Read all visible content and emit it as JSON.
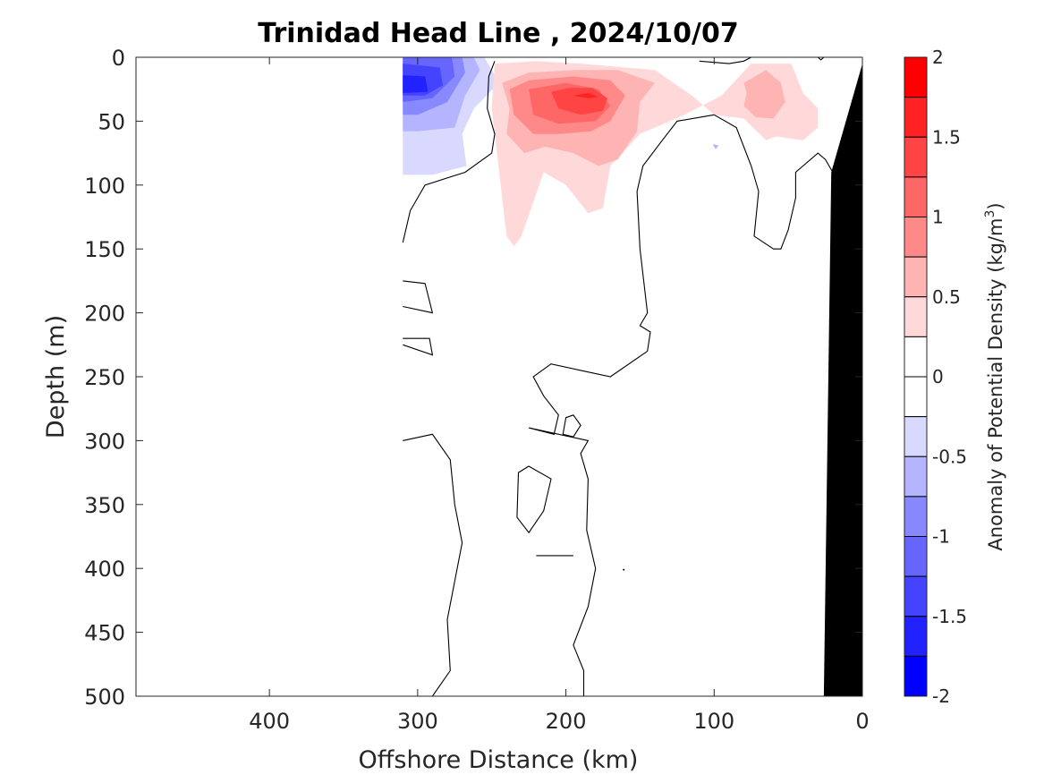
{
  "chart_data": {
    "type": "contour",
    "title": "Trinidad Head Line , 2024/10/07",
    "xlabel": "Offshore Distance (km)",
    "ylabel": "Depth (m)",
    "xlim": [
      490,
      0
    ],
    "ylim": [
      0,
      500
    ],
    "xticks": [
      400,
      300,
      200,
      100,
      0
    ],
    "yticks": [
      0,
      50,
      100,
      150,
      200,
      250,
      300,
      350,
      400,
      450,
      500
    ],
    "colorbar": {
      "label": "Anomaly of Potential Density (kg/m",
      "label_superscript": "3",
      "label_suffix": ")",
      "range": [
        -2,
        2
      ],
      "ticks": [
        2,
        1.5,
        1,
        0.5,
        0,
        -0.5,
        -1,
        -1.5,
        -2
      ],
      "tick_labels": [
        "2",
        "1.5",
        "1",
        "0.5",
        "0",
        "-0.5",
        "-1",
        "-1.5",
        "-2"
      ],
      "levels": [
        {
          "lo": 1.75,
          "hi": 2.0,
          "color": "#ff0000"
        },
        {
          "lo": 1.5,
          "hi": 1.75,
          "color": "#ff2222"
        },
        {
          "lo": 1.25,
          "hi": 1.5,
          "color": "#ff4444"
        },
        {
          "lo": 1.0,
          "hi": 1.25,
          "color": "#ff6666"
        },
        {
          "lo": 0.75,
          "hi": 1.0,
          "color": "#ff8888"
        },
        {
          "lo": 0.5,
          "hi": 0.75,
          "color": "#ffb4b4"
        },
        {
          "lo": 0.25,
          "hi": 0.5,
          "color": "#ffd9d9"
        },
        {
          "lo": 0.0,
          "hi": 0.25,
          "color": "#ffffff"
        },
        {
          "lo": -0.25,
          "hi": 0.0,
          "color": "#ffffff"
        },
        {
          "lo": -0.5,
          "hi": -0.25,
          "color": "#d9d9ff"
        },
        {
          "lo": -0.75,
          "hi": -0.5,
          "color": "#b4b4ff"
        },
        {
          "lo": -1.0,
          "hi": -0.75,
          "color": "#8888ff"
        },
        {
          "lo": -1.25,
          "hi": -1.0,
          "color": "#6666ff"
        },
        {
          "lo": -1.5,
          "hi": -1.25,
          "color": "#4444ff"
        },
        {
          "lo": -1.75,
          "hi": -1.5,
          "color": "#2222ff"
        },
        {
          "lo": -2.0,
          "hi": -1.75,
          "color": "#0000ff"
        }
      ]
    },
    "data_extent_km": 310,
    "bathymetry": [
      [
        26,
        500
      ],
      [
        21,
        90
      ],
      [
        0,
        5
      ],
      [
        0,
        500
      ]
    ],
    "regions": [
      {
        "name": "neg-0.5",
        "color": "#d9d9ff",
        "points": [
          [
            310,
            0
          ],
          [
            255,
            0
          ],
          [
            245,
            20
          ],
          [
            262,
            40
          ],
          [
            270,
            60
          ],
          [
            267,
            85
          ],
          [
            290,
            92
          ],
          [
            310,
            92
          ]
        ]
      },
      {
        "name": "neg-0.75",
        "color": "#b4b4ff",
        "points": [
          [
            310,
            0
          ],
          [
            262,
            0
          ],
          [
            258,
            10
          ],
          [
            268,
            30
          ],
          [
            275,
            55
          ],
          [
            300,
            58
          ],
          [
            310,
            58
          ]
        ]
      },
      {
        "name": "neg-1.0",
        "color": "#8888ff",
        "points": [
          [
            310,
            0
          ],
          [
            270,
            0
          ],
          [
            268,
            12
          ],
          [
            280,
            35
          ],
          [
            300,
            45
          ],
          [
            310,
            45
          ]
        ]
      },
      {
        "name": "neg-1.25",
        "color": "#6666ff",
        "points": [
          [
            310,
            0
          ],
          [
            277,
            0
          ],
          [
            275,
            15
          ],
          [
            290,
            32
          ],
          [
            310,
            35
          ]
        ]
      },
      {
        "name": "neg-1.5",
        "color": "#4444ff",
        "points": [
          [
            310,
            5
          ],
          [
            285,
            8
          ],
          [
            283,
            22
          ],
          [
            295,
            30
          ],
          [
            310,
            30
          ]
        ]
      },
      {
        "name": "neg-1.75",
        "color": "#2222ff",
        "points": [
          [
            310,
            14
          ],
          [
            295,
            15
          ],
          [
            293,
            27
          ],
          [
            310,
            28
          ]
        ]
      },
      {
        "name": "pos-0.25",
        "color": "#ffd9d9",
        "points": [
          [
            248,
            5
          ],
          [
            250,
            40
          ],
          [
            245,
            90
          ],
          [
            240,
            140
          ],
          [
            235,
            148
          ],
          [
            230,
            140
          ],
          [
            215,
            90
          ],
          [
            200,
            100
          ],
          [
            185,
            122
          ],
          [
            175,
            118
          ],
          [
            170,
            85
          ],
          [
            150,
            60
          ],
          [
            120,
            45
          ],
          [
            95,
            30
          ],
          [
            75,
            5
          ],
          [
            48,
            5
          ],
          [
            40,
            28
          ],
          [
            30,
            40
          ],
          [
            30,
            55
          ],
          [
            40,
            65
          ],
          [
            58,
            62
          ],
          [
            65,
            65
          ],
          [
            80,
            48
          ],
          [
            100,
            45
          ],
          [
            115,
            30
          ],
          [
            140,
            10
          ],
          [
            190,
            5
          ],
          [
            220,
            3
          ]
        ]
      },
      {
        "name": "pos-0.5",
        "color": "#ffb4b4",
        "points": [
          [
            243,
            20
          ],
          [
            238,
            40
          ],
          [
            240,
            60
          ],
          [
            228,
            75
          ],
          [
            214,
            70
          ],
          [
            195,
            75
          ],
          [
            178,
            85
          ],
          [
            165,
            80
          ],
          [
            152,
            58
          ],
          [
            150,
            35
          ],
          [
            140,
            20
          ],
          [
            165,
            10
          ],
          [
            195,
            10
          ],
          [
            225,
            12
          ]
        ]
      },
      {
        "name": "pos-0.5b",
        "color": "#ffb4b4",
        "points": [
          [
            80,
            20
          ],
          [
            65,
            10
          ],
          [
            55,
            20
          ],
          [
            52,
            35
          ],
          [
            60,
            48
          ],
          [
            72,
            47
          ],
          [
            80,
            38
          ],
          [
            78,
            28
          ]
        ]
      },
      {
        "name": "pos-0.75",
        "color": "#ff8888",
        "points": [
          [
            238,
            25
          ],
          [
            235,
            45
          ],
          [
            222,
            60
          ],
          [
            205,
            60
          ],
          [
            183,
            58
          ],
          [
            170,
            50
          ],
          [
            160,
            30
          ],
          [
            170,
            18
          ],
          [
            195,
            15
          ],
          [
            225,
            18
          ]
        ]
      },
      {
        "name": "pos-1.0",
        "color": "#ff6666",
        "points": [
          [
            225,
            25
          ],
          [
            222,
            45
          ],
          [
            205,
            52
          ],
          [
            180,
            50
          ],
          [
            170,
            38
          ],
          [
            178,
            25
          ],
          [
            200,
            20
          ]
        ]
      },
      {
        "name": "pos-1.25",
        "color": "#ff4444",
        "points": [
          [
            210,
            27
          ],
          [
            205,
            40
          ],
          [
            190,
            45
          ],
          [
            175,
            42
          ],
          [
            172,
            32
          ],
          [
            182,
            24
          ],
          [
            198,
            24
          ]
        ]
      },
      {
        "name": "pos-1.5",
        "color": "#ff2222",
        "points": [
          [
            195,
            30
          ],
          [
            185,
            32
          ],
          [
            178,
            31
          ],
          [
            185,
            28
          ]
        ]
      },
      {
        "name": "neg-speck",
        "color": "#b4b4ff",
        "points": [
          [
            101,
            68
          ],
          [
            99,
            72
          ],
          [
            97,
            69
          ]
        ]
      }
    ],
    "zero_contours": [
      {
        "closed": false,
        "points": [
          [
            248,
            3
          ],
          [
            252,
            15
          ],
          [
            253,
            40
          ],
          [
            248,
            60
          ],
          [
            250,
            75
          ],
          [
            268,
            90
          ],
          [
            295,
            100
          ],
          [
            305,
            120
          ],
          [
            310,
            145
          ]
        ]
      },
      {
        "closed": false,
        "points": [
          [
            110,
            3
          ],
          [
            90,
            5
          ],
          [
            80,
            3
          ],
          [
            75,
            0
          ]
        ]
      },
      {
        "closed": false,
        "points": [
          [
            30,
            0
          ],
          [
            28,
            2
          ],
          [
            26,
            0
          ]
        ]
      },
      {
        "closed": false,
        "points": [
          [
            100,
            45
          ],
          [
            125,
            50
          ],
          [
            135,
            65
          ],
          [
            148,
            85
          ],
          [
            152,
            105
          ],
          [
            150,
            150
          ],
          [
            145,
            200
          ],
          [
            150,
            210
          ],
          [
            143,
            215
          ],
          [
            145,
            230
          ],
          [
            170,
            250
          ],
          [
            190,
            245
          ],
          [
            210,
            240
          ],
          [
            222,
            250
          ],
          [
            215,
            265
          ],
          [
            205,
            280
          ],
          [
            208,
            295
          ],
          [
            225,
            290
          ],
          [
            185,
            300
          ],
          [
            190,
            310
          ],
          [
            185,
            330
          ],
          [
            186,
            370
          ],
          [
            180,
            400
          ],
          [
            185,
            430
          ],
          [
            195,
            460
          ],
          [
            188,
            480
          ],
          [
            188,
            500
          ]
        ]
      },
      {
        "closed": false,
        "points": [
          [
            100,
            45
          ],
          [
            85,
            55
          ],
          [
            75,
            85
          ],
          [
            70,
            105
          ],
          [
            73,
            140
          ],
          [
            60,
            150
          ],
          [
            55,
            150
          ],
          [
            50,
            135
          ],
          [
            45,
            110
          ],
          [
            45,
            90
          ],
          [
            30,
            75
          ],
          [
            25,
            80
          ],
          [
            20,
            90
          ]
        ]
      },
      {
        "closed": false,
        "points": [
          [
            310,
            300
          ],
          [
            290,
            295
          ],
          [
            278,
            315
          ],
          [
            275,
            350
          ],
          [
            270,
            380
          ],
          [
            275,
            410
          ],
          [
            280,
            440
          ],
          [
            278,
            480
          ],
          [
            290,
            500
          ]
        ]
      },
      {
        "closed": false,
        "points": [
          [
            310,
            175
          ],
          [
            295,
            177
          ],
          [
            290,
            200
          ],
          [
            310,
            195
          ]
        ]
      },
      {
        "closed": false,
        "points": [
          [
            310,
            220
          ],
          [
            292,
            220
          ],
          [
            290,
            233
          ],
          [
            310,
            225
          ]
        ]
      },
      {
        "closed": false,
        "points": [
          [
            220,
            390
          ],
          [
            195,
            390
          ]
        ]
      },
      {
        "closed": true,
        "points": [
          [
            225,
            320
          ],
          [
            232,
            325
          ],
          [
            233,
            360
          ],
          [
            225,
            372
          ],
          [
            215,
            355
          ],
          [
            210,
            330
          ]
        ]
      },
      {
        "closed": true,
        "points": [
          [
            195,
            280
          ],
          [
            190,
            288
          ],
          [
            195,
            297
          ],
          [
            202,
            295
          ],
          [
            200,
            282
          ]
        ]
      }
    ],
    "speck": [
      161,
      401
    ]
  }
}
